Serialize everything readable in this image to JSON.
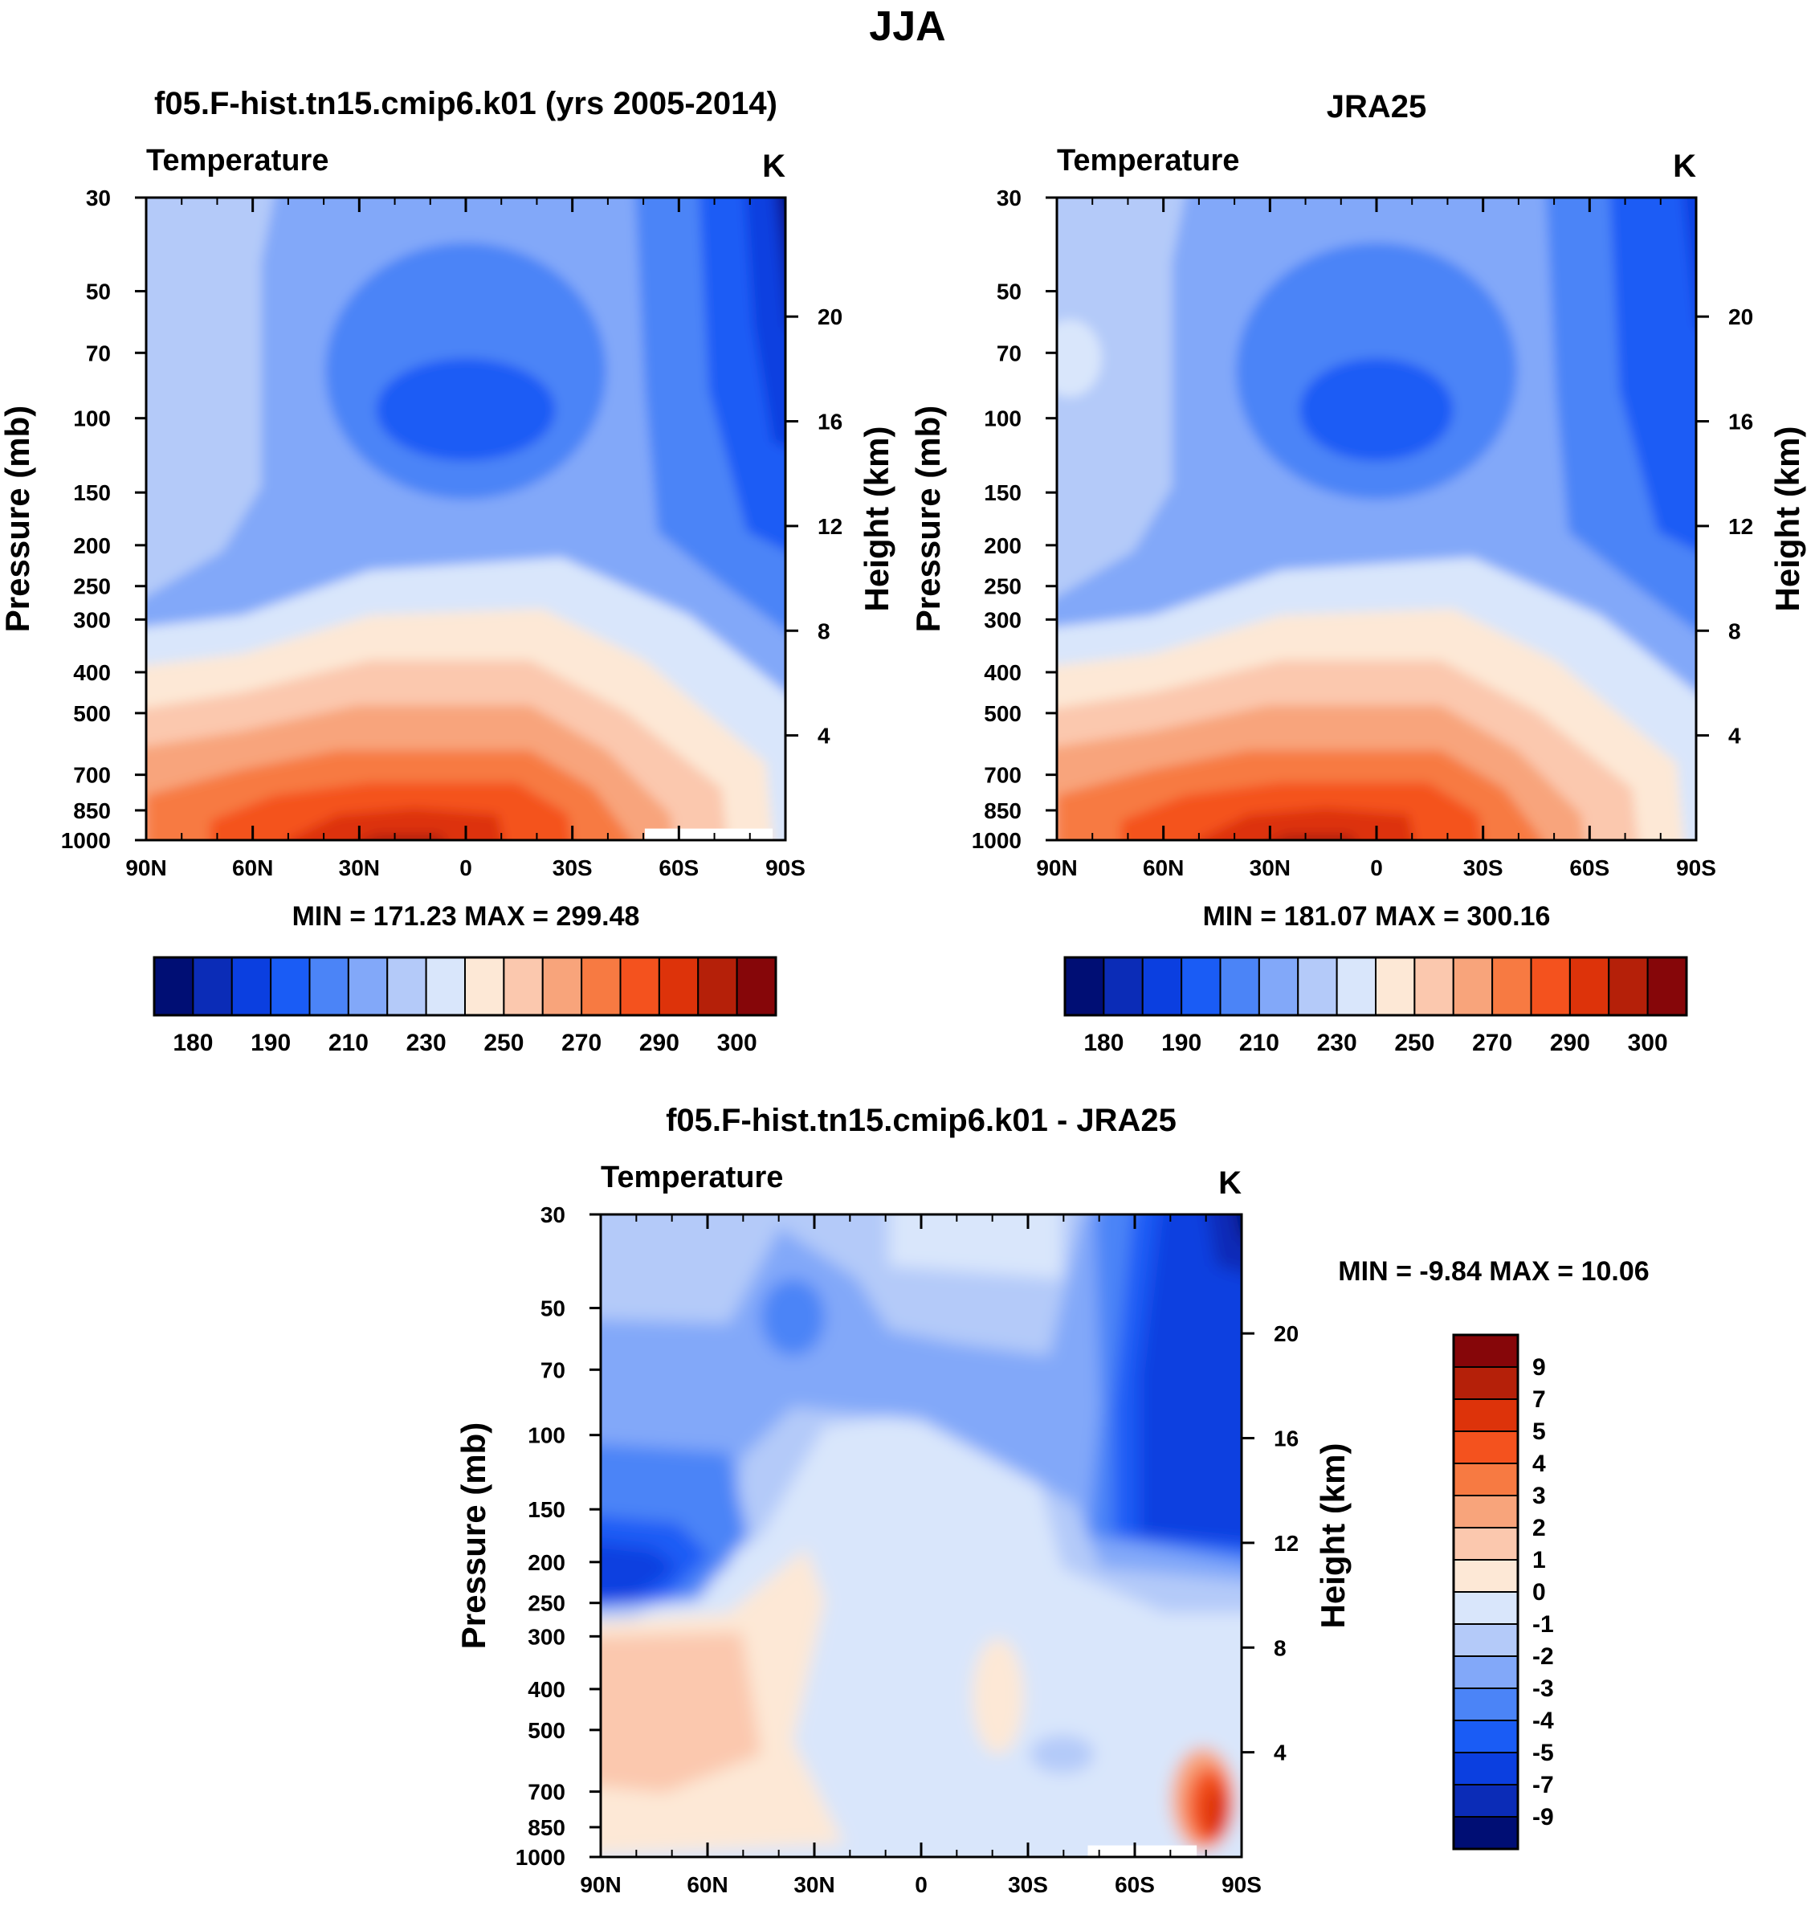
{
  "figure": {
    "title": "JJA"
  },
  "colors": {
    "abs_scale": [
      "#000e74",
      "#0b2cb7",
      "#0b3fe0",
      "#1a5cf5",
      "#4b84f7",
      "#82a8f9",
      "#b4caf9",
      "#d9e6fb",
      "#fde8d6",
      "#fbc8ae",
      "#f8a47b",
      "#f77a42",
      "#f4521e",
      "#dd330a",
      "#b52009",
      "#860609"
    ],
    "diff_scale": [
      "#000e74",
      "#0b2cb7",
      "#0b3fe0",
      "#1a5cf5",
      "#4b84f7",
      "#82a8f9",
      "#b4caf9",
      "#d9e6fb",
      "#fde8d6",
      "#fbc8ae",
      "#f8a47b",
      "#f77a42",
      "#f4521e",
      "#dd330a",
      "#b52009",
      "#860609"
    ]
  },
  "chart_data": [
    {
      "type": "heatmap",
      "title": "f05.F-hist.tn15.cmip6.k01 (yrs 2005-2014)",
      "left_label": "Temperature",
      "right_label": "K",
      "xlabel": "",
      "ylabel": "Pressure (mb)",
      "y2label": "Height (km)",
      "x_ticklabels": [
        "90N",
        "60N",
        "30N",
        "0",
        "30S",
        "60S",
        "90S"
      ],
      "y_ticklabels": [
        "30",
        "50",
        "70",
        "100",
        "150",
        "200",
        "250",
        "300",
        "400",
        "500",
        "700",
        "850",
        "1000"
      ],
      "y2_ticklabels": [
        "20",
        "16",
        "12",
        "8",
        "4"
      ],
      "ylim": [
        1000,
        30
      ],
      "min_max": "MIN = 171.23  MAX = 299.48",
      "levels": [
        180,
        185,
        190,
        200,
        210,
        220,
        230,
        240,
        250,
        260,
        270,
        280,
        290,
        295,
        300
      ],
      "colorbar_labels": [
        "180",
        "190",
        "210",
        "230",
        "250",
        "270",
        "290",
        "300"
      ],
      "min": 171.23,
      "max": 299.48
    },
    {
      "type": "heatmap",
      "title": "JRA25",
      "left_label": "Temperature",
      "right_label": "K",
      "xlabel": "",
      "ylabel": "Pressure (mb)",
      "y2label": "Height (km)",
      "x_ticklabels": [
        "90N",
        "60N",
        "30N",
        "0",
        "30S",
        "60S",
        "90S"
      ],
      "y_ticklabels": [
        "30",
        "50",
        "70",
        "100",
        "150",
        "200",
        "250",
        "300",
        "400",
        "500",
        "700",
        "850",
        "1000"
      ],
      "y2_ticklabels": [
        "20",
        "16",
        "12",
        "8",
        "4"
      ],
      "ylim": [
        1000,
        30
      ],
      "min_max": "MIN = 181.07  MAX = 300.16",
      "levels": [
        180,
        185,
        190,
        200,
        210,
        220,
        230,
        240,
        250,
        260,
        270,
        280,
        290,
        295,
        300
      ],
      "colorbar_labels": [
        "180",
        "190",
        "210",
        "230",
        "250",
        "270",
        "290",
        "300"
      ],
      "min": 181.07,
      "max": 300.16
    },
    {
      "type": "heatmap",
      "title": "f05.F-hist.tn15.cmip6.k01 - JRA25",
      "left_label": "Temperature",
      "right_label": "K",
      "xlabel": "",
      "ylabel": "Pressure (mb)",
      "y2label": "Height (km)",
      "x_ticklabels": [
        "90N",
        "60N",
        "30N",
        "0",
        "30S",
        "60S",
        "90S"
      ],
      "y_ticklabels": [
        "30",
        "50",
        "70",
        "100",
        "150",
        "200",
        "250",
        "300",
        "400",
        "500",
        "700",
        "850",
        "1000"
      ],
      "y2_ticklabels": [
        "20",
        "16",
        "12",
        "8",
        "4"
      ],
      "ylim": [
        1000,
        30
      ],
      "min_max": "MIN =  -9.84  MAX =  10.06",
      "levels": [
        -9,
        -7,
        -5,
        -4,
        -3,
        -2,
        -1,
        0,
        1,
        2,
        3,
        4,
        5,
        7,
        9
      ],
      "colorbar_labels": [
        "9",
        "7",
        "5",
        "4",
        "3",
        "2",
        "1",
        "0",
        "-1",
        "-2",
        "-3",
        "-4",
        "-5",
        "-7",
        "-9"
      ],
      "min": -9.84,
      "max": 10.06
    }
  ]
}
